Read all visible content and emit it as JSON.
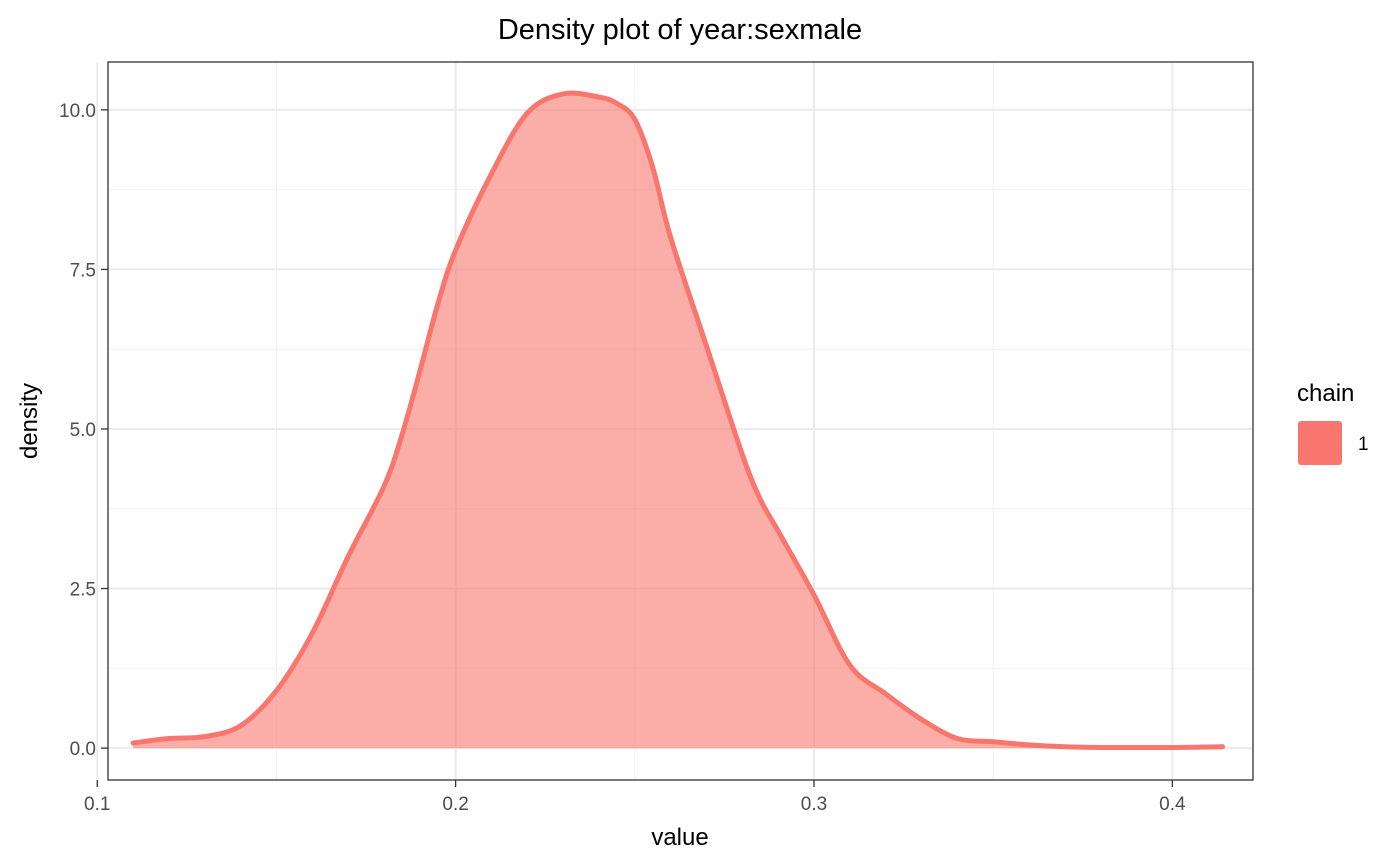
{
  "chart_data": {
    "type": "area",
    "title": "Density plot of  year:sexmale",
    "xlabel": "value",
    "ylabel": "density",
    "xlim": [
      0.103,
      0.4225
    ],
    "ylim": [
      -0.5,
      10.75
    ],
    "x_ticks": [
      0.1,
      0.2,
      0.3,
      0.4
    ],
    "x_tick_labels": [
      "0.1",
      "0.2",
      "0.3",
      "0.4"
    ],
    "y_ticks": [
      0.0,
      2.5,
      5.0,
      7.5,
      10.0
    ],
    "y_tick_labels": [
      "0.0",
      "2.5",
      "5.0",
      "7.5",
      "10.0"
    ],
    "grid": true,
    "legend": {
      "title": "chain",
      "placement": "right",
      "entries": [
        {
          "label": "1",
          "color": "#F8766D"
        }
      ]
    },
    "series": [
      {
        "name": "1",
        "color": "#F8766D",
        "fill_color": "#F8766D",
        "fill_opacity": 0.6,
        "x": [
          0.11,
          0.12,
          0.13,
          0.14,
          0.15,
          0.16,
          0.17,
          0.18,
          0.185,
          0.19,
          0.195,
          0.2,
          0.21,
          0.22,
          0.23,
          0.24,
          0.245,
          0.25,
          0.255,
          0.26,
          0.27,
          0.28,
          0.285,
          0.29,
          0.3,
          0.31,
          0.32,
          0.33,
          0.34,
          0.35,
          0.36,
          0.37,
          0.38,
          0.39,
          0.4,
          0.414
        ],
        "y": [
          0.08,
          0.15,
          0.18,
          0.35,
          0.9,
          1.8,
          3.0,
          4.1,
          4.9,
          5.9,
          6.95,
          7.8,
          9.0,
          9.95,
          10.25,
          10.2,
          10.1,
          9.85,
          9.1,
          8.0,
          6.3,
          4.6,
          3.9,
          3.4,
          2.4,
          1.3,
          0.85,
          0.45,
          0.15,
          0.1,
          0.05,
          0.02,
          0.01,
          0.01,
          0.01,
          0.02
        ]
      }
    ]
  }
}
